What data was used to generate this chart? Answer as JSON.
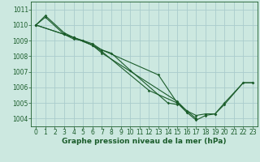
{
  "title": "Graphe pression niveau de la mer (hPa)",
  "background_color": "#cce8e0",
  "grid_color": "#aacccc",
  "line_color": "#1a5c2a",
  "ylim": [
    1003.5,
    1011.5
  ],
  "yticks": [
    1004,
    1005,
    1006,
    1007,
    1008,
    1009,
    1010,
    1011
  ],
  "xlim": [
    -0.5,
    23.5
  ],
  "xticks": [
    0,
    1,
    2,
    3,
    4,
    5,
    6,
    7,
    8,
    9,
    10,
    11,
    12,
    13,
    14,
    15,
    16,
    17,
    18,
    19,
    20,
    21,
    22,
    23
  ],
  "line1_x": [
    0,
    1,
    3,
    4,
    5,
    6,
    7,
    8,
    10,
    14,
    15
  ],
  "line1_y": [
    1010.0,
    1010.5,
    1009.4,
    1009.1,
    1009.0,
    1008.7,
    1008.4,
    1008.2,
    1007.1,
    1005.0,
    1004.9
  ],
  "line2_x": [
    0,
    1,
    3,
    4,
    6,
    7,
    13,
    15,
    16,
    17,
    18,
    19,
    20,
    22,
    23
  ],
  "line2_y": [
    1010.0,
    1010.6,
    1009.5,
    1009.2,
    1008.8,
    1008.4,
    1006.8,
    1005.0,
    1004.4,
    1003.9,
    1004.2,
    1004.3,
    1004.9,
    1006.3,
    1006.3
  ],
  "line3_x": [
    0,
    3,
    4,
    6,
    7,
    12,
    15,
    16,
    17
  ],
  "line3_y": [
    1010.0,
    1009.4,
    1009.2,
    1008.7,
    1008.3,
    1005.8,
    1005.0,
    1004.5,
    1004.0
  ],
  "line4_x": [
    0,
    3,
    4,
    6,
    7,
    15,
    16,
    17,
    18,
    19,
    20,
    22,
    23
  ],
  "line4_y": [
    1010.0,
    1009.4,
    1009.2,
    1008.7,
    1008.2,
    1005.1,
    1004.5,
    1004.2,
    1004.3,
    1004.3,
    1005.0,
    1006.3,
    1006.3
  ],
  "fontsize_ticks": 5.5,
  "fontsize_label": 6.5
}
